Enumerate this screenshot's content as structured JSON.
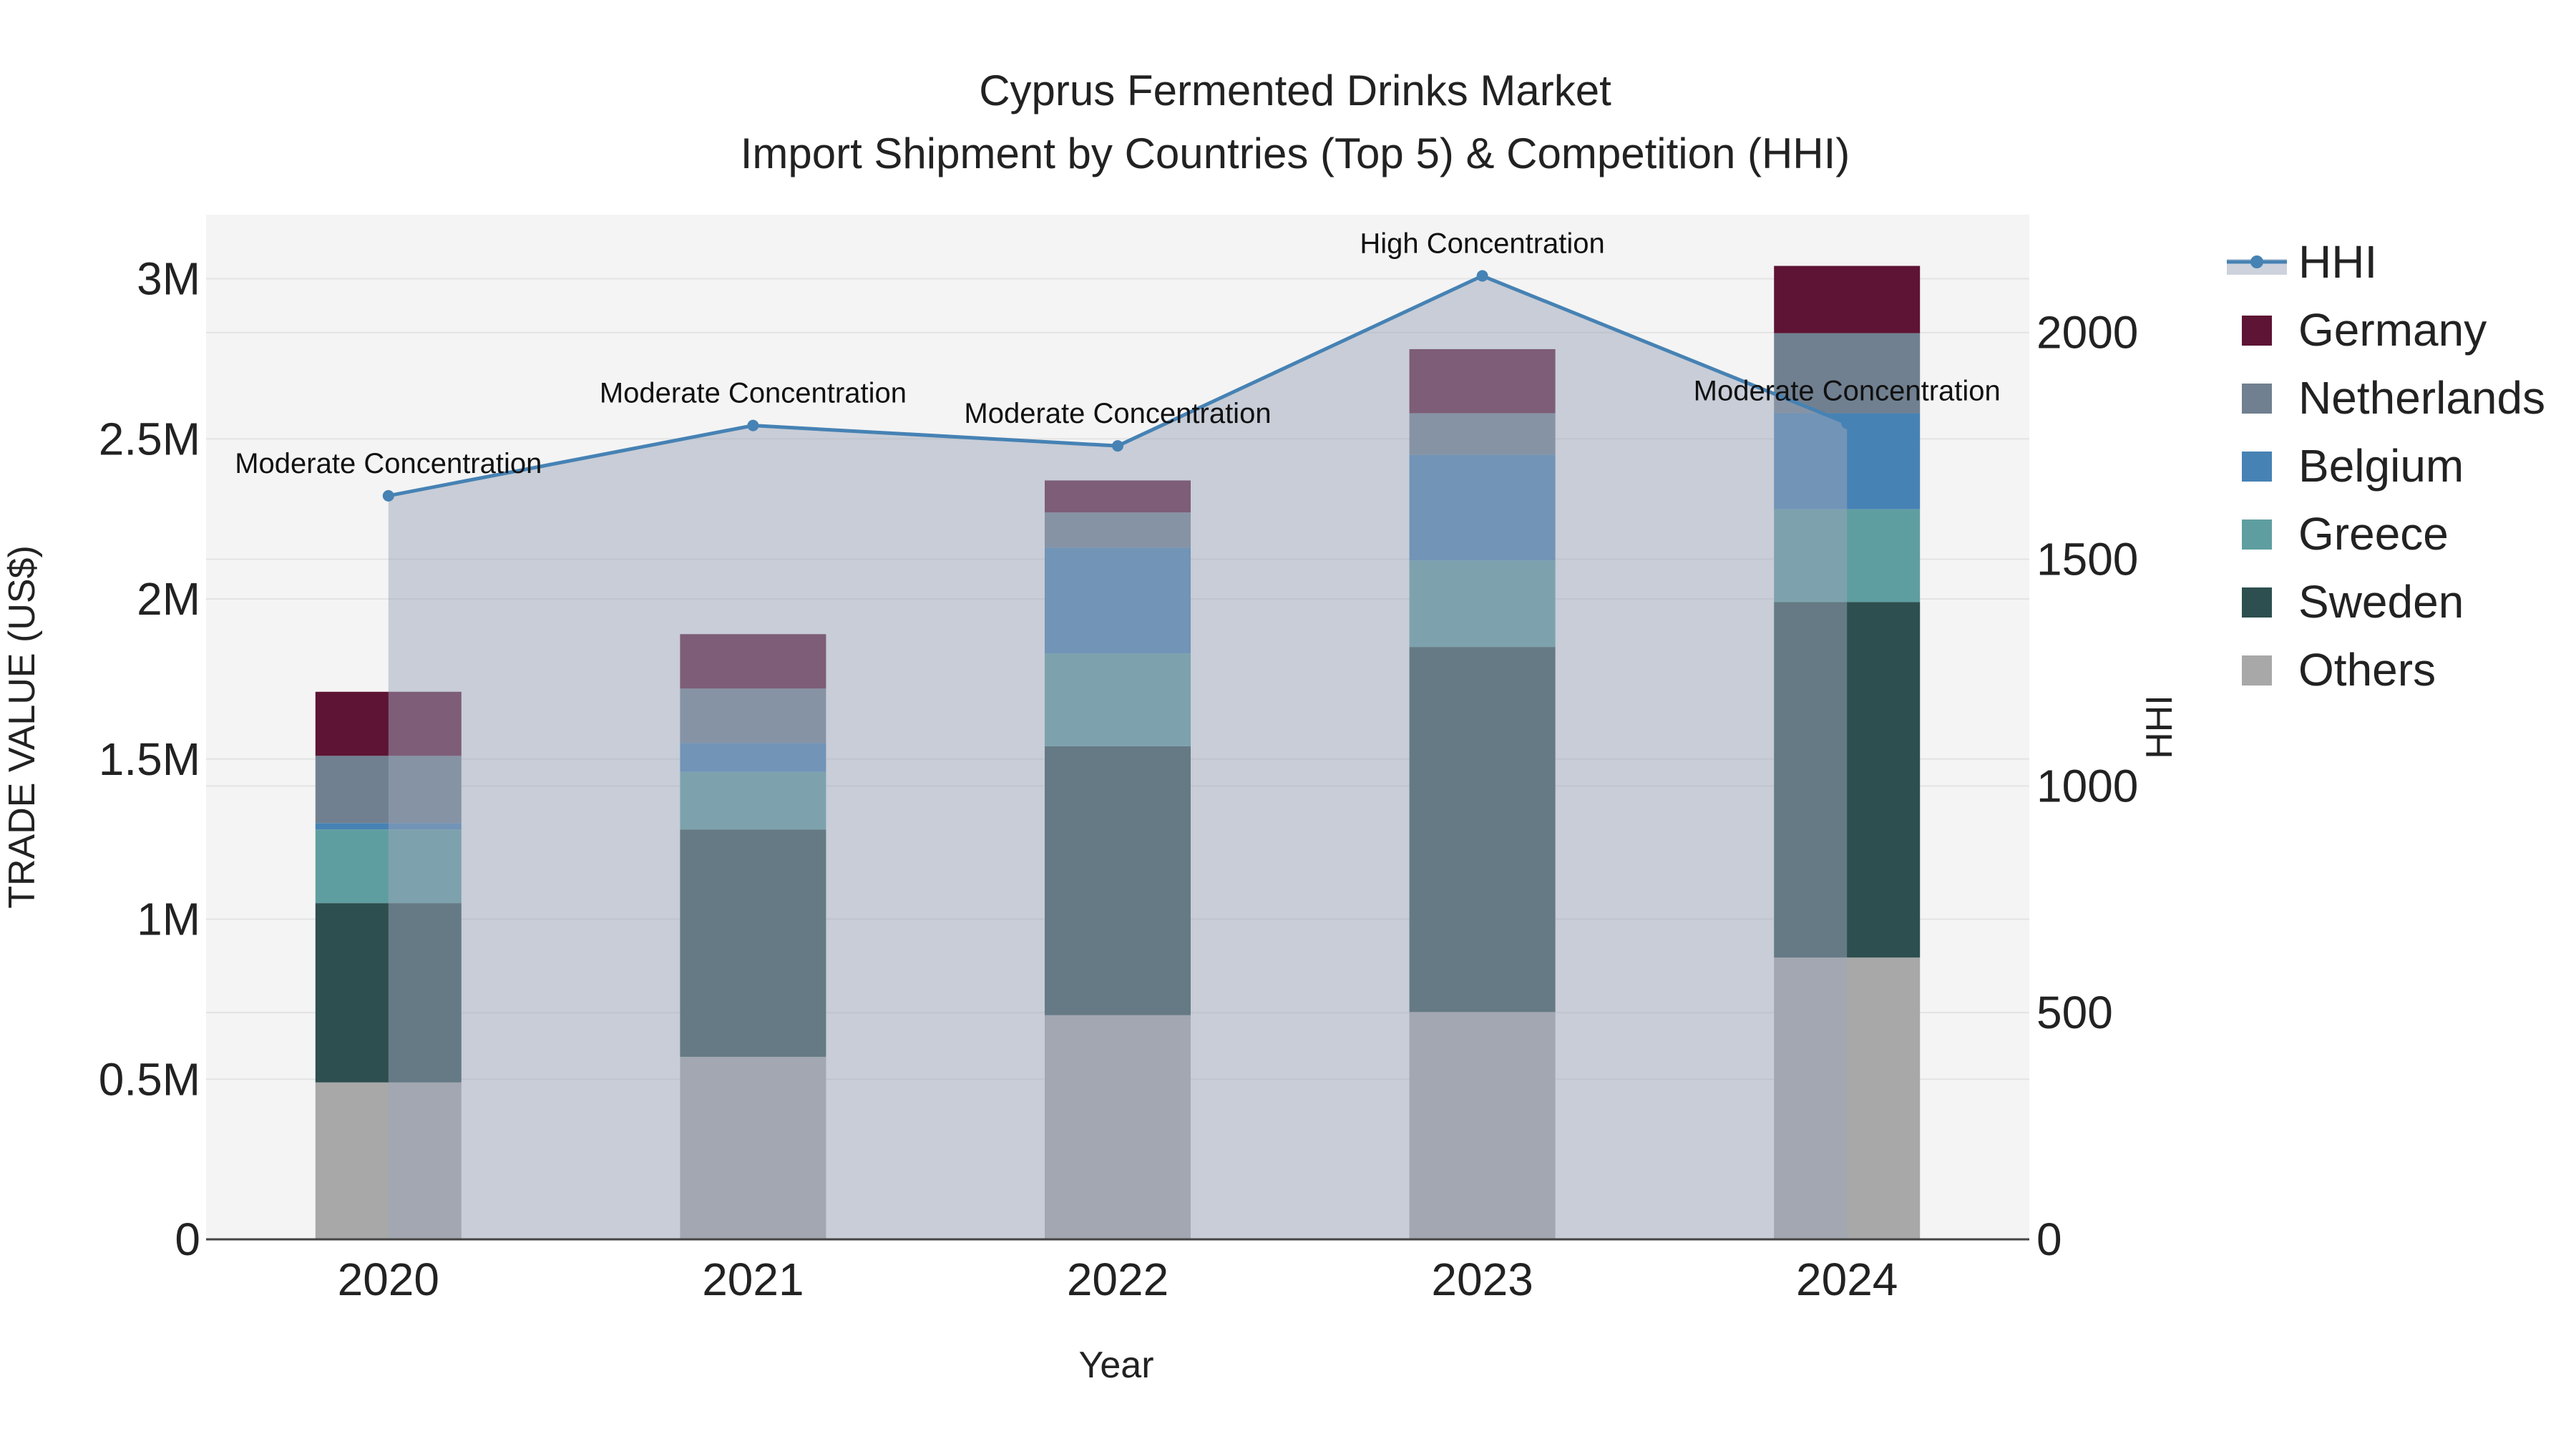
{
  "chart_data": {
    "type": "bar",
    "title": "Cyprus Fermented Drinks Market",
    "subtitle": "Import Shipment by Countries (Top 5) & Competition (HHI)",
    "xlabel": "Year",
    "ylabel": "TRADE VALUE (US$)",
    "y2label": "HHI",
    "categories": [
      "2020",
      "2021",
      "2022",
      "2023",
      "2024"
    ],
    "ylim": [
      0,
      3200000
    ],
    "y2lim": [
      0,
      2260
    ],
    "y_ticks": [
      {
        "value": 0,
        "label": "0"
      },
      {
        "value": 500000,
        "label": "0.5M"
      },
      {
        "value": 1000000,
        "label": "1M"
      },
      {
        "value": 1500000,
        "label": "1.5M"
      },
      {
        "value": 2000000,
        "label": "2M"
      },
      {
        "value": 2500000,
        "label": "2.5M"
      },
      {
        "value": 3000000,
        "label": "3M"
      }
    ],
    "y2_ticks": [
      {
        "value": 0,
        "label": "0"
      },
      {
        "value": 500,
        "label": "500"
      },
      {
        "value": 1000,
        "label": "1000"
      },
      {
        "value": 1500,
        "label": "1500"
      },
      {
        "value": 2000,
        "label": "2000"
      }
    ],
    "series": [
      {
        "name": "Others",
        "color": "#a8a8a8",
        "values": [
          490000,
          570000,
          700000,
          710000,
          880000
        ]
      },
      {
        "name": "Sweden",
        "color": "#2e4f4f",
        "values": [
          560000,
          710000,
          840000,
          1140000,
          1110000
        ]
      },
      {
        "name": "Greece",
        "color": "#5f9ea0",
        "values": [
          230000,
          180000,
          290000,
          270000,
          290000
        ]
      },
      {
        "name": "Belgium",
        "color": "#4682b4",
        "values": [
          20000,
          90000,
          330000,
          330000,
          300000
        ]
      },
      {
        "name": "Netherlands",
        "color": "#708090",
        "values": [
          210000,
          170000,
          110000,
          130000,
          250000
        ]
      },
      {
        "name": "Germany",
        "color": "#5e1434",
        "values": [
          200000,
          170000,
          100000,
          200000,
          210000
        ]
      }
    ],
    "hhi": {
      "name": "HHI",
      "color": "#4682b4",
      "values": [
        1640,
        1795,
        1750,
        2125,
        1800
      ],
      "labels": [
        "Moderate Concentration",
        "Moderate Concentration",
        "Moderate Concentration",
        "High Concentration",
        "Moderate Concentration"
      ]
    },
    "legend": [
      "HHI",
      "Germany",
      "Netherlands",
      "Belgium",
      "Greece",
      "Sweden",
      "Others"
    ],
    "legend_position": "right"
  }
}
